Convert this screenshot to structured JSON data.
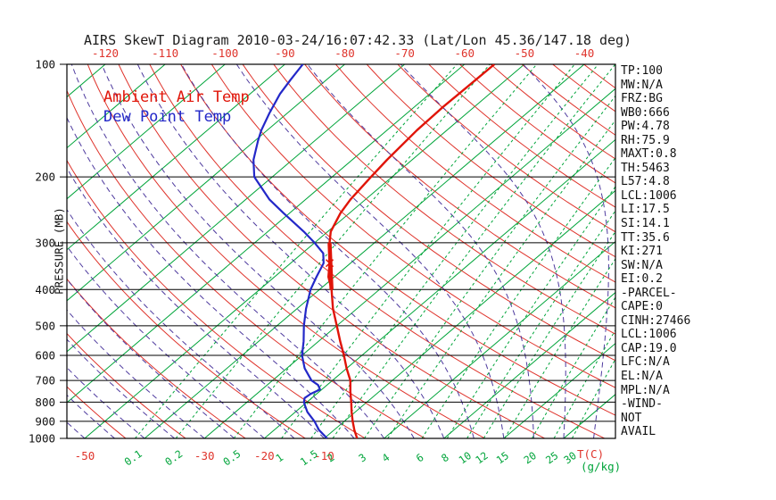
{
  "title": "AIRS SkewT Diagram 2010-03-24/16:07:42.33 (Lat/Lon 45.36/147.18 deg)",
  "legend": {
    "ambient": "Ambient Air Temp",
    "dewpoint": "Dew Point Temp"
  },
  "colors": {
    "isotherm": "#00a43a",
    "mixing_ratio": "#00a43a",
    "mixing_label": "#00a43a",
    "dry_adiabat": "#df342c",
    "moist_adiabat": "#4e3a9e",
    "ambient": "#e01408",
    "dewpoint": "#2328c8",
    "axis_red": "#df342c",
    "axis_text": "#111111"
  },
  "stats_panel": [
    "TP:100",
    "MW:N/A",
    "FRZ:BG",
    "WB0:666",
    "PW:4.78",
    "RH:75.9",
    "MAXT:0.8",
    "TH:5463",
    "L57:4.8",
    "LCL:1006",
    "LI:17.5",
    "SI:14.1",
    "TT:35.6",
    "KI:271",
    "SW:N/A",
    "EI:0.2",
    "-PARCEL-",
    "CAPE:0",
    "CINH:27466",
    "LCL:1006",
    "CAP:19.0",
    "LFC:N/A",
    "EL:N/A",
    "MPL:N/A",
    "-WIND-",
    "NOT",
    "AVAIL"
  ],
  "chart_data": {
    "type": "skewt-log-p",
    "title": "AIRS SkewT Diagram 2010-03-24/16:07:42.33 (Lat/Lon 45.36/147.18 deg)",
    "pressure_axis": {
      "label": "PRESSURE (MB)",
      "ticks": [
        100,
        200,
        300,
        400,
        500,
        600,
        700,
        800,
        900,
        1000
      ],
      "range": [
        100,
        1000
      ]
    },
    "temp_axis": {
      "unit_label": "T(C)",
      "top_labels_c": [
        -120,
        -110,
        -100,
        -90,
        -80,
        -70,
        -60,
        -50,
        -40
      ],
      "bottom_labels_c": [
        -50,
        -30,
        -20,
        -10
      ]
    },
    "mixing_ratio_axis": {
      "unit_label": "(g/kg)",
      "values_gkg": [
        0.1,
        0.2,
        0.5,
        1,
        1.5,
        2,
        3,
        4,
        6,
        8,
        10,
        12,
        15,
        20,
        25,
        30
      ]
    },
    "grid": {
      "isotherms_c": [
        -130,
        -120,
        -110,
        -100,
        -90,
        -80,
        -70,
        -60,
        -50,
        -40,
        -30,
        -20,
        -10,
        0,
        10,
        20,
        30,
        40
      ],
      "dry_adiabats_k": [
        220,
        230,
        240,
        250,
        260,
        270,
        280,
        290,
        300,
        310,
        320,
        330,
        340,
        350,
        360,
        370,
        380,
        390,
        400,
        410,
        420,
        430,
        440,
        450,
        460
      ],
      "moist_adiabats_c": [
        -90,
        -85,
        -80,
        -75,
        -70,
        -65,
        -60,
        -55,
        -50,
        -45,
        -40,
        -35,
        -30,
        -25,
        -20,
        -15,
        -10,
        -5,
        0,
        5,
        10,
        15,
        20,
        25,
        30,
        35,
        40
      ]
    },
    "series": [
      {
        "name": "Ambient Air Temp",
        "color": "#e01408",
        "width": 2.4,
        "points": [
          [
            1000,
            -4.5
          ],
          [
            950,
            -6.6
          ],
          [
            900,
            -8.6
          ],
          [
            850,
            -10.6
          ],
          [
            800,
            -12.6
          ],
          [
            750,
            -14.8
          ],
          [
            700,
            -17.0
          ],
          [
            650,
            -20.0
          ],
          [
            600,
            -23.0
          ],
          [
            550,
            -26.4
          ],
          [
            500,
            -30.0
          ],
          [
            450,
            -34.0
          ],
          [
            400,
            -38.0
          ],
          [
            370,
            -41.0
          ],
          [
            340,
            -43.5
          ],
          [
            300,
            -47.5
          ],
          [
            280,
            -49.5
          ],
          [
            250,
            -51.5
          ],
          [
            230,
            -52.5
          ],
          [
            200,
            -53.5
          ],
          [
            180,
            -54.2
          ],
          [
            150,
            -55.0
          ],
          [
            130,
            -55.2
          ],
          [
            115,
            -55.1
          ],
          [
            100,
            -55.0
          ]
        ]
      },
      {
        "name": "Dew Point Temp",
        "color": "#2328c8",
        "width": 2.2,
        "points": [
          [
            1000,
            -9.5
          ],
          [
            950,
            -12.5
          ],
          [
            900,
            -15.0
          ],
          [
            850,
            -18.0
          ],
          [
            820,
            -19.5
          ],
          [
            800,
            -20.5
          ],
          [
            780,
            -21.2
          ],
          [
            760,
            -21.0
          ],
          [
            740,
            -20.3
          ],
          [
            720,
            -21.5
          ],
          [
            700,
            -23.5
          ],
          [
            650,
            -27.0
          ],
          [
            600,
            -30.0
          ],
          [
            550,
            -32.5
          ],
          [
            500,
            -35.5
          ],
          [
            450,
            -38.5
          ],
          [
            400,
            -41.5
          ],
          [
            370,
            -43.0
          ],
          [
            340,
            -44.5
          ],
          [
            320,
            -46.5
          ],
          [
            300,
            -50.0
          ],
          [
            280,
            -54.0
          ],
          [
            250,
            -61.0
          ],
          [
            230,
            -66.0
          ],
          [
            200,
            -73.0
          ],
          [
            180,
            -76.5
          ],
          [
            160,
            -79.5
          ],
          [
            150,
            -81.0
          ],
          [
            135,
            -83.0
          ],
          [
            120,
            -85.0
          ],
          [
            110,
            -86.0
          ],
          [
            100,
            -87.0
          ]
        ]
      }
    ],
    "highlight_segment": {
      "p1": 400,
      "t1": -38,
      "p2": 300,
      "t2": -47.5
    },
    "marker": {
      "p": 340,
      "t": -43.5
    }
  }
}
